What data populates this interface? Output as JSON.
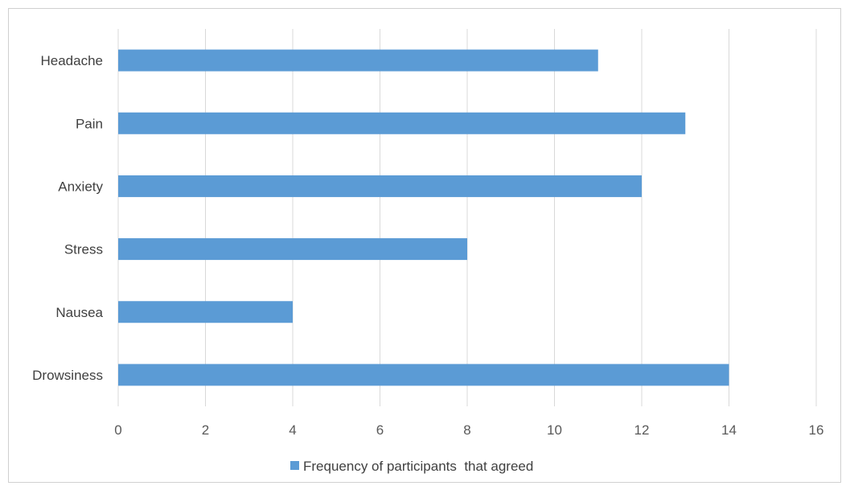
{
  "chart_data": {
    "type": "bar",
    "orientation": "horizontal",
    "categories": [
      "Headache",
      "Pain",
      "Anxiety",
      "Stress",
      "Nausea",
      "Drowsiness"
    ],
    "series": [
      {
        "name": "Frequency of participants  that agreed",
        "values": [
          11,
          13,
          12,
          8,
          4,
          14
        ],
        "color": "#5b9bd5"
      }
    ],
    "xlim": [
      0,
      16
    ],
    "xticks": [
      0,
      2,
      4,
      6,
      8,
      10,
      12,
      14,
      16
    ],
    "grid": "vertical",
    "legend_position": "bottom"
  }
}
